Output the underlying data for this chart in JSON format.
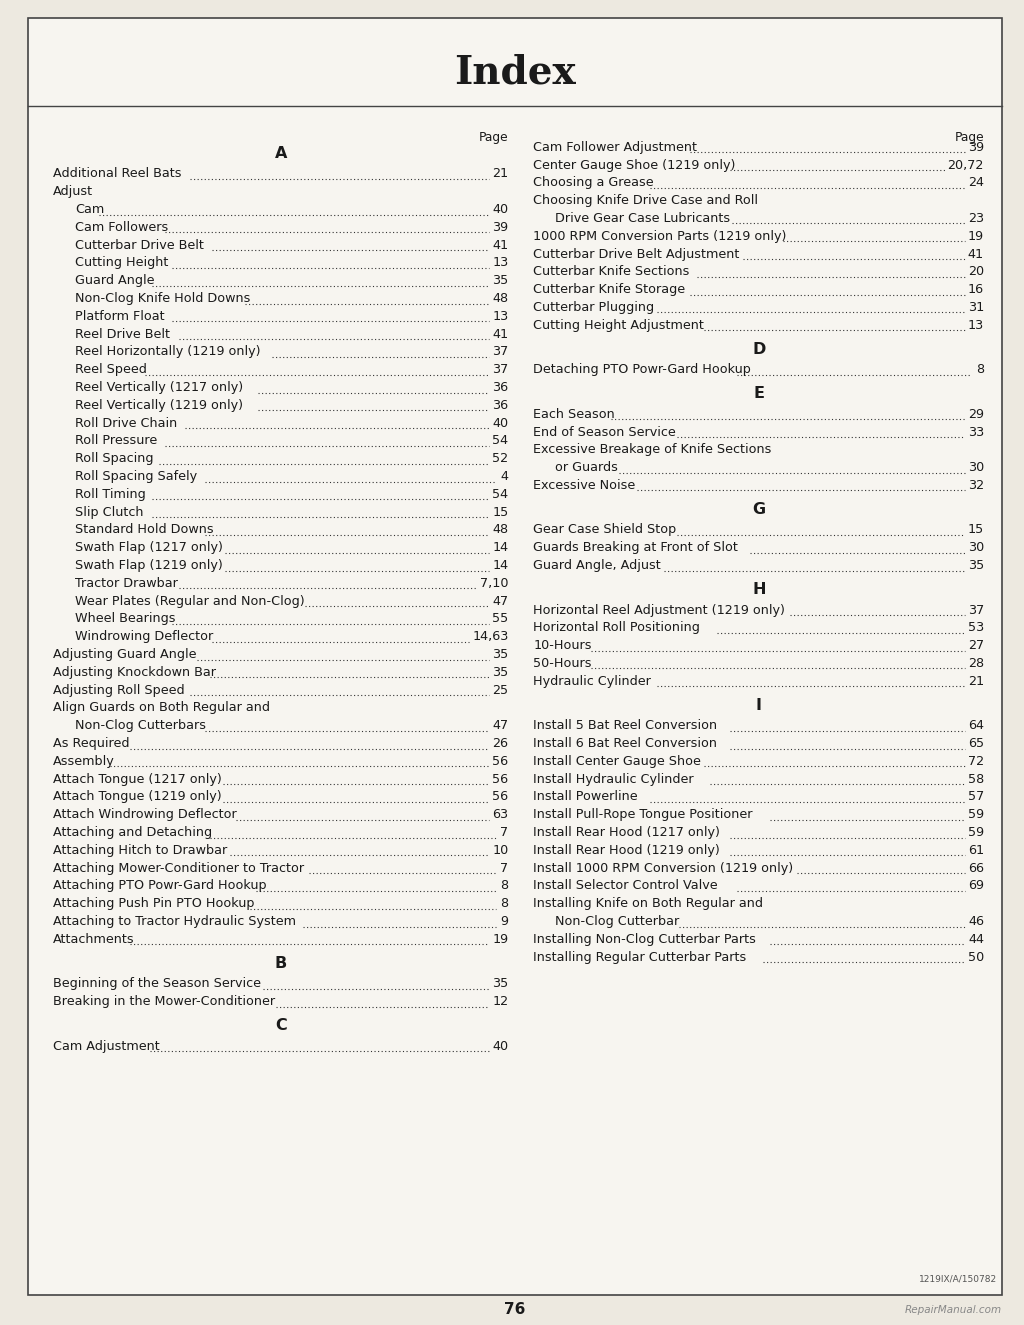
{
  "title": "Index",
  "page_number": "76",
  "bg_color": "#ede9e0",
  "content_bg": "#f7f5f0",
  "watermark": "RepairManual.com",
  "part_number": "1219IX/A/150782",
  "left_entries": [
    {
      "type": "page_label",
      "text": "Page",
      "indent": 0
    },
    {
      "type": "section",
      "text": "A",
      "indent": 0
    },
    {
      "type": "entry",
      "text": "Additional Reel Bats",
      "page": "21",
      "indent": 0
    },
    {
      "type": "entry",
      "text": "Adjust",
      "page": "",
      "indent": 0
    },
    {
      "type": "entry",
      "text": "Cam",
      "page": "40",
      "indent": 1
    },
    {
      "type": "entry",
      "text": "Cam Followers",
      "page": "39",
      "indent": 1
    },
    {
      "type": "entry",
      "text": "Cutterbar Drive Belt",
      "page": "41",
      "indent": 1
    },
    {
      "type": "entry",
      "text": "Cutting Height",
      "page": "13",
      "indent": 1
    },
    {
      "type": "entry",
      "text": "Guard Angle",
      "page": "35",
      "indent": 1
    },
    {
      "type": "entry",
      "text": "Non-Clog Knife Hold Downs",
      "page": "48",
      "indent": 1
    },
    {
      "type": "entry",
      "text": "Platform Float",
      "page": "13",
      "indent": 1
    },
    {
      "type": "entry",
      "text": "Reel Drive Belt",
      "page": "41",
      "indent": 1
    },
    {
      "type": "entry",
      "text": "Reel Horizontally (1219 only)",
      "page": "37",
      "indent": 1
    },
    {
      "type": "entry",
      "text": "Reel Speed",
      "page": "37",
      "indent": 1
    },
    {
      "type": "entry",
      "text": "Reel Vertically (1217 only)",
      "page": "36",
      "indent": 1
    },
    {
      "type": "entry",
      "text": "Reel Vertically (1219 only)",
      "page": "36",
      "indent": 1
    },
    {
      "type": "entry",
      "text": "Roll Drive Chain",
      "page": "40",
      "indent": 1
    },
    {
      "type": "entry",
      "text": "Roll Pressure",
      "page": "54",
      "indent": 1
    },
    {
      "type": "entry",
      "text": "Roll Spacing",
      "page": "52",
      "indent": 1
    },
    {
      "type": "entry",
      "text": "Roll Spacing Safely",
      "page": "4",
      "indent": 1
    },
    {
      "type": "entry",
      "text": "Roll Timing",
      "page": "54",
      "indent": 1
    },
    {
      "type": "entry",
      "text": "Slip Clutch",
      "page": "15",
      "indent": 1
    },
    {
      "type": "entry",
      "text": "Standard Hold Downs",
      "page": "48",
      "indent": 1
    },
    {
      "type": "entry",
      "text": "Swath Flap (1217 only)",
      "page": "14",
      "indent": 1
    },
    {
      "type": "entry",
      "text": "Swath Flap (1219 only)",
      "page": "14",
      "indent": 1
    },
    {
      "type": "entry",
      "text": "Tractor Drawbar",
      "page": "7,10",
      "indent": 1
    },
    {
      "type": "entry",
      "text": "Wear Plates (Regular and Non-Clog)",
      "page": "47",
      "indent": 1
    },
    {
      "type": "entry",
      "text": "Wheel Bearings",
      "page": "55",
      "indent": 1
    },
    {
      "type": "entry",
      "text": "Windrowing Deflector",
      "page": "14,63",
      "indent": 1
    },
    {
      "type": "entry",
      "text": "Adjusting Guard Angle",
      "page": "35",
      "indent": 0
    },
    {
      "type": "entry",
      "text": "Adjusting Knockdown Bar",
      "page": "35",
      "indent": 0
    },
    {
      "type": "entry",
      "text": "Adjusting Roll Speed",
      "page": "25",
      "indent": 0
    },
    {
      "type": "entry",
      "text": "Align Guards on Both Regular and",
      "page": "",
      "indent": 0
    },
    {
      "type": "entry",
      "text": "Non-Clog Cutterbars",
      "page": "47",
      "indent": 1
    },
    {
      "type": "entry",
      "text": "As Required",
      "page": "26",
      "indent": 0
    },
    {
      "type": "entry",
      "text": "Assembly",
      "page": "56",
      "indent": 0
    },
    {
      "type": "entry",
      "text": "Attach Tongue (1217 only)",
      "page": "56",
      "indent": 0
    },
    {
      "type": "entry",
      "text": "Attach Tongue (1219 only)",
      "page": "56",
      "indent": 0
    },
    {
      "type": "entry",
      "text": "Attach Windrowing Deflector",
      "page": "63",
      "indent": 0
    },
    {
      "type": "entry",
      "text": "Attaching and Detaching",
      "page": "7",
      "indent": 0
    },
    {
      "type": "entry",
      "text": "Attaching Hitch to Drawbar",
      "page": "10",
      "indent": 0
    },
    {
      "type": "entry",
      "text": "Attaching Mower-Conditioner to Tractor",
      "page": "7",
      "indent": 0
    },
    {
      "type": "entry",
      "text": "Attaching PTO Powr-Gard Hookup",
      "page": "8",
      "indent": 0
    },
    {
      "type": "entry",
      "text": "Attaching Push Pin PTO Hookup",
      "page": "8",
      "indent": 0
    },
    {
      "type": "entry",
      "text": "Attaching to Tractor Hydraulic System",
      "page": "9",
      "indent": 0
    },
    {
      "type": "entry",
      "text": "Attachments",
      "page": "19",
      "indent": 0
    },
    {
      "type": "section",
      "text": "B",
      "indent": 0
    },
    {
      "type": "entry",
      "text": "Beginning of the Season Service",
      "page": "35",
      "indent": 0
    },
    {
      "type": "entry",
      "text": "Breaking in the Mower-Conditioner",
      "page": "12",
      "indent": 0
    },
    {
      "type": "section",
      "text": "C",
      "indent": 0
    },
    {
      "type": "entry",
      "text": "Cam Adjustment",
      "page": "40",
      "indent": 0
    }
  ],
  "right_entries": [
    {
      "type": "page_label",
      "text": "Page",
      "indent": 0
    },
    {
      "type": "entry",
      "text": "Cam Follower Adjustment",
      "page": "39",
      "indent": 0
    },
    {
      "type": "entry",
      "text": "Center Gauge Shoe (1219 only)",
      "page": "20,72",
      "indent": 0
    },
    {
      "type": "entry",
      "text": "Choosing a Grease",
      "page": "24",
      "indent": 0
    },
    {
      "type": "entry",
      "text": "Choosing Knife Drive Case and Roll",
      "page": "",
      "indent": 0
    },
    {
      "type": "entry",
      "text": "Drive Gear Case Lubricants",
      "page": "23",
      "indent": 1
    },
    {
      "type": "entry",
      "text": "1000 RPM Conversion Parts (1219 only)",
      "page": "19",
      "indent": 0
    },
    {
      "type": "entry",
      "text": "Cutterbar Drive Belt Adjustment",
      "page": "41",
      "indent": 0
    },
    {
      "type": "entry",
      "text": "Cutterbar Knife Sections",
      "page": "20",
      "indent": 0
    },
    {
      "type": "entry",
      "text": "Cutterbar Knife Storage",
      "page": "16",
      "indent": 0
    },
    {
      "type": "entry",
      "text": "Cutterbar Plugging",
      "page": "31",
      "indent": 0
    },
    {
      "type": "entry",
      "text": "Cutting Height Adjustment",
      "page": "13",
      "indent": 0
    },
    {
      "type": "section",
      "text": "D",
      "indent": 0
    },
    {
      "type": "entry",
      "text": "Detaching PTO Powr-Gard Hookup",
      "page": "8",
      "indent": 0
    },
    {
      "type": "section",
      "text": "E",
      "indent": 0
    },
    {
      "type": "entry",
      "text": "Each Season",
      "page": "29",
      "indent": 0
    },
    {
      "type": "entry",
      "text": "End of Season Service",
      "page": "33",
      "indent": 0
    },
    {
      "type": "entry",
      "text": "Excessive Breakage of Knife Sections",
      "page": "",
      "indent": 0
    },
    {
      "type": "entry",
      "text": "or Guards",
      "page": "30",
      "indent": 1
    },
    {
      "type": "entry",
      "text": "Excessive Noise",
      "page": "32",
      "indent": 0
    },
    {
      "type": "section",
      "text": "G",
      "indent": 0
    },
    {
      "type": "entry",
      "text": "Gear Case Shield Stop",
      "page": "15",
      "indent": 0
    },
    {
      "type": "entry",
      "text": "Guards Breaking at Front of Slot",
      "page": "30",
      "indent": 0
    },
    {
      "type": "entry",
      "text": "Guard Angle, Adjust",
      "page": "35",
      "indent": 0
    },
    {
      "type": "section",
      "text": "H",
      "indent": 0
    },
    {
      "type": "entry",
      "text": "Horizontal Reel Adjustment (1219 only)",
      "page": "37",
      "indent": 0
    },
    {
      "type": "entry",
      "text": "Horizontal Roll Positioning",
      "page": "53",
      "indent": 0
    },
    {
      "type": "entry",
      "text": "10-Hours",
      "page": "27",
      "indent": 0
    },
    {
      "type": "entry",
      "text": "50-Hours",
      "page": "28",
      "indent": 0
    },
    {
      "type": "entry",
      "text": "Hydraulic Cylinder",
      "page": "21",
      "indent": 0
    },
    {
      "type": "section",
      "text": "I",
      "indent": 0
    },
    {
      "type": "entry",
      "text": "Install 5 Bat Reel Conversion",
      "page": "64",
      "indent": 0
    },
    {
      "type": "entry",
      "text": "Install 6 Bat Reel Conversion",
      "page": "65",
      "indent": 0
    },
    {
      "type": "entry",
      "text": "Install Center Gauge Shoe",
      "page": "72",
      "indent": 0
    },
    {
      "type": "entry",
      "text": "Install Hydraulic Cylinder",
      "page": "58",
      "indent": 0
    },
    {
      "type": "entry",
      "text": "Install Powerline",
      "page": "57",
      "indent": 0
    },
    {
      "type": "entry",
      "text": "Install Pull-Rope Tongue Positioner",
      "page": "59",
      "indent": 0
    },
    {
      "type": "entry",
      "text": "Install Rear Hood (1217 only)",
      "page": "59",
      "indent": 0
    },
    {
      "type": "entry",
      "text": "Install Rear Hood (1219 only)",
      "page": "61",
      "indent": 0
    },
    {
      "type": "entry",
      "text": "Install 1000 RPM Conversion (1219 only)",
      "page": "66",
      "indent": 0
    },
    {
      "type": "entry",
      "text": "Install Selector Control Valve",
      "page": "69",
      "indent": 0
    },
    {
      "type": "entry",
      "text": "Installing Knife on Both Regular and",
      "page": "",
      "indent": 0
    },
    {
      "type": "entry",
      "text": "Non-Clog Cutterbar",
      "page": "46",
      "indent": 1
    },
    {
      "type": "entry",
      "text": "Installing Non-Clog Cutterbar Parts",
      "page": "44",
      "indent": 0
    },
    {
      "type": "entry",
      "text": "Installing Regular Cutterbar Parts",
      "page": "50",
      "indent": 0
    }
  ]
}
